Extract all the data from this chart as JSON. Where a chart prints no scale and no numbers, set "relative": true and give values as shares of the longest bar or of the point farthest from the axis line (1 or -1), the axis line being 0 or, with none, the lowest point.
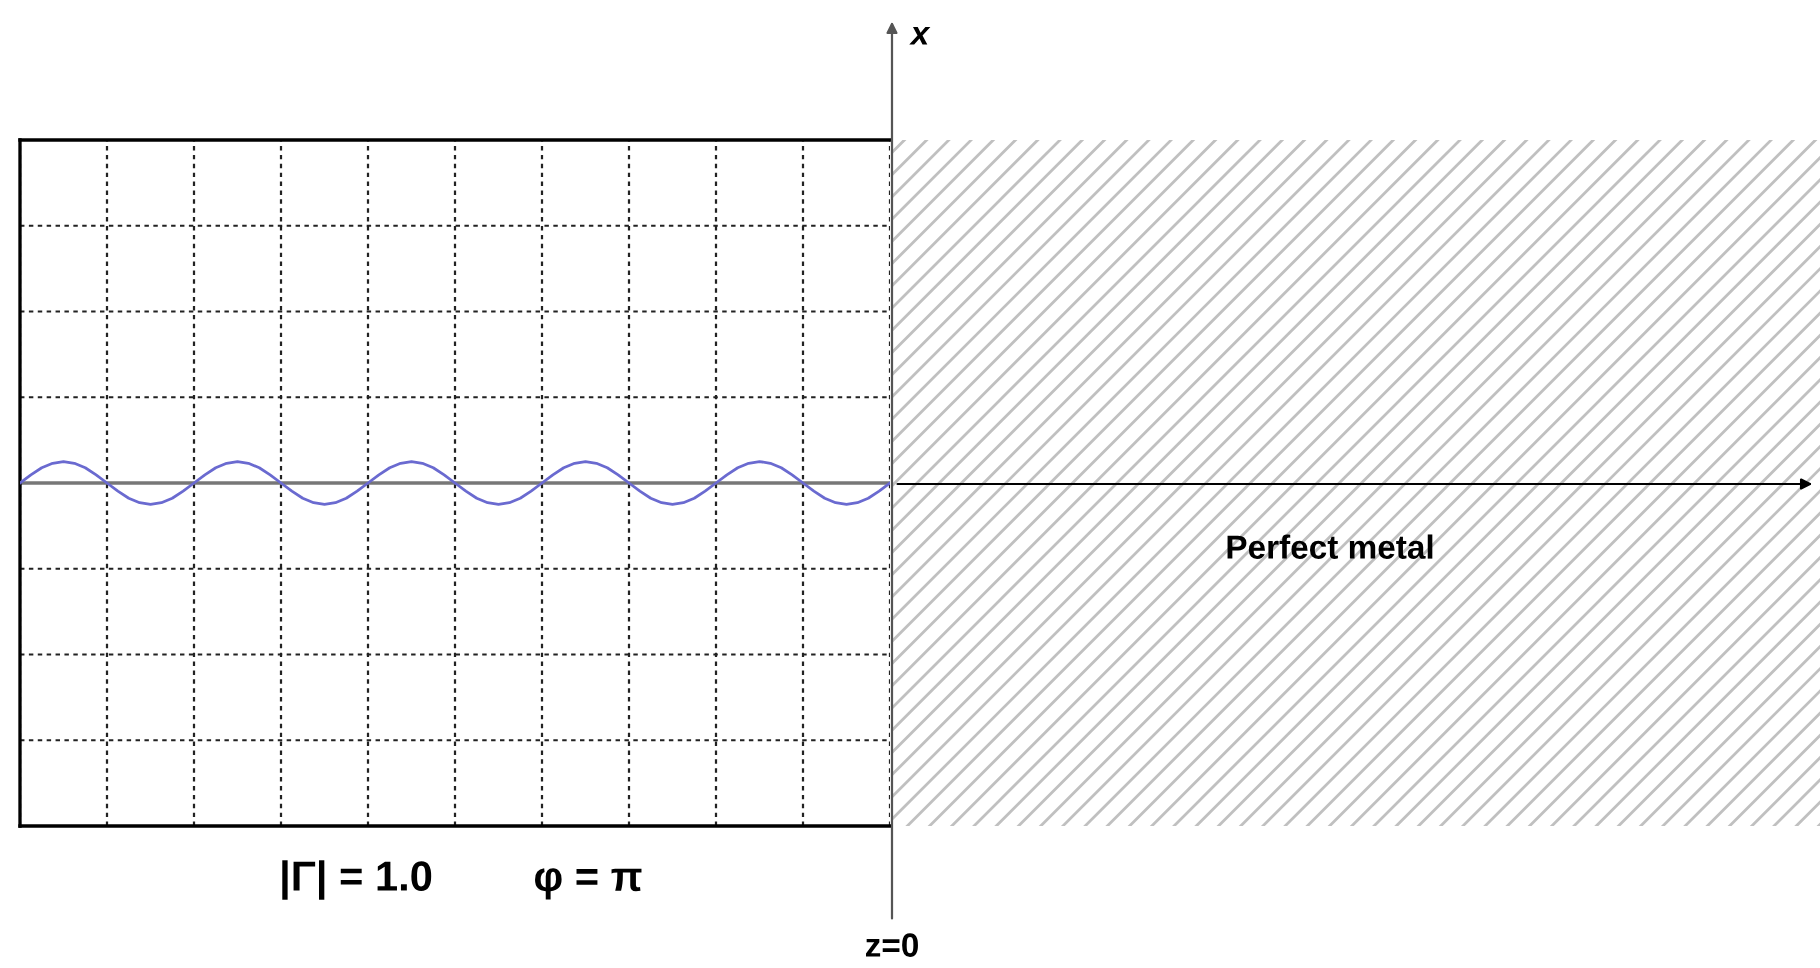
{
  "chart_data": {
    "type": "line",
    "relative": true,
    "categories": [
      null,
      null,
      null,
      null,
      null,
      null,
      null,
      null,
      null,
      null,
      null,
      null,
      null,
      null,
      null,
      null,
      null,
      null,
      null,
      null,
      null,
      null,
      null,
      null,
      null,
      null,
      null,
      null,
      null,
      null,
      null,
      null,
      null,
      null,
      null,
      null,
      null,
      null,
      null,
      null,
      null,
      null,
      null,
      null,
      null,
      null,
      null,
      null,
      null,
      null,
      null,
      null,
      null,
      null,
      null,
      null,
      null,
      null,
      null,
      null,
      null,
      null,
      null,
      null,
      null,
      null,
      null,
      null,
      null,
      null,
      null,
      null,
      null,
      null,
      null,
      null,
      null,
      null,
      null,
      null,
      null
    ],
    "series": [
      {
        "color": "#6a6ad0",
        "values": [
          0,
          0.38,
          0.71,
          0.92,
          1,
          0.92,
          0.71,
          0.38,
          0,
          -0.38,
          -0.71,
          -0.92,
          -1,
          -0.92,
          -0.71,
          -0.38,
          0,
          0.38,
          0.71,
          0.92,
          1,
          0.92,
          0.71,
          0.38,
          0,
          -0.38,
          -0.71,
          -0.92,
          -1,
          -0.92,
          -0.71,
          -0.38,
          0,
          0.38,
          0.71,
          0.92,
          1,
          0.92,
          0.71,
          0.38,
          0,
          -0.38,
          -0.71,
          -0.92,
          -1,
          -0.92,
          -0.71,
          -0.38,
          0,
          0.38,
          0.71,
          0.92,
          1,
          0.92,
          0.71,
          0.38,
          0,
          -0.38,
          -0.71,
          -0.92,
          -1,
          -0.92,
          -0.71,
          -0.38,
          0,
          0.38,
          0.71,
          0.92,
          1,
          0.92,
          0.71,
          0.38,
          0,
          -0.38,
          -0.71,
          -0.92,
          -1,
          -0.92,
          -0.71,
          -0.38,
          0
        ]
      }
    ],
    "grid": true,
    "line_style": "solid",
    "marker": "none",
    "tick_labels": false,
    "legend": false,
    "annotations": [
      "x",
      "|Γ| = 1.0",
      "φ = π",
      "Perfect metal",
      "z=0"
    ]
  }
}
